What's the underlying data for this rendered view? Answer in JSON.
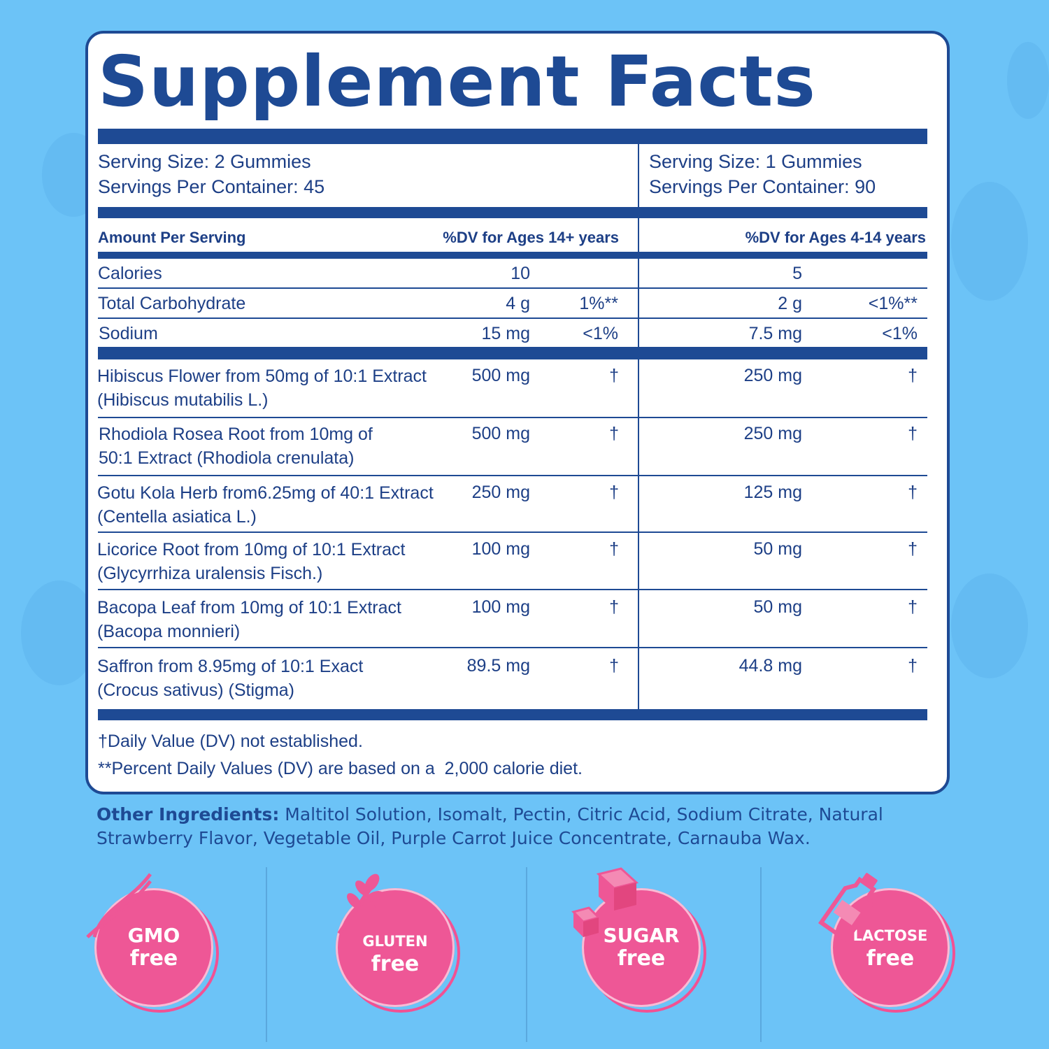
{
  "title": "Supplement Facts",
  "serving_left": {
    "size": "Serving Size: 2 Gummies",
    "per_container": "Servings Per Container: 45"
  },
  "serving_right": {
    "size": "Serving Size: 1 Gummies",
    "per_container": "Servings Per Container: 90"
  },
  "header": {
    "amount": "Amount Per Serving",
    "dv_left": "%DV for Ages 14+ years",
    "dv_right": "%DV for Ages 4-14 years"
  },
  "nutrients": [
    {
      "name": "Calories",
      "amt_left": "10",
      "dv_left": "",
      "amt_right": "5",
      "dv_right": ""
    },
    {
      "name": "Total Carbohydrate",
      "amt_left": "4 g",
      "dv_left": "1%**",
      "amt_right": "2 g",
      "dv_right": "<1%**"
    },
    {
      "name": "Sodium",
      "amt_left": "15 mg",
      "dv_left": "<1%",
      "amt_right": "7.5 mg",
      "dv_right": "<1%"
    }
  ],
  "ingredients": [
    {
      "line1": "Hibiscus Flower from 50mg of 10:1 Extract",
      "line2": "(Hibiscus mutabilis L.)",
      "amt_left": "500 mg",
      "dv_left": "†",
      "amt_right": "250 mg",
      "dv_right": "†"
    },
    {
      "line1": "Rhodiola Rosea Root from 10mg of",
      "line2": "50:1 Extract (Rhodiola crenulata)",
      "amt_left": "500 mg",
      "dv_left": "†",
      "amt_right": "250 mg",
      "dv_right": "†"
    },
    {
      "line1": "Gotu Kola Herb from6.25mg of 40:1 Extract",
      "line2": "(Centella asiatica L.)",
      "amt_left": "250 mg",
      "dv_left": "†",
      "amt_right": "125 mg",
      "dv_right": "†"
    },
    {
      "line1": "Licorice Root from 10mg of 10:1 Extract",
      "line2": "(Glycyrrhiza uralensis Fisch.)",
      "amt_left": "100 mg",
      "dv_left": "†",
      "amt_right": "50 mg",
      "dv_right": "†"
    },
    {
      "line1": "Bacopa Leaf from 10mg of 10:1 Extract",
      "line2": "(Bacopa monnieri)",
      "amt_left": "100 mg",
      "dv_left": "†",
      "amt_right": "50 mg",
      "dv_right": "†"
    },
    {
      "line1": "Saffron from 8.95mg of 10:1 Exact",
      "line2": "(Crocus sativus) (Stigma)",
      "amt_left": "89.5 mg",
      "dv_left": "†",
      "amt_right": "44.8 mg",
      "dv_right": "†"
    }
  ],
  "footnotes": {
    "dagger": "†Daily Value (DV) not established.",
    "dv_basis": "**Percent Daily Values (DV) are based on a  2,000 calorie diet."
  },
  "other_ingredients": {
    "label": "Other Ingredients:",
    "text": "Maltitol Solution, Isomalt, Pectin, Citric Acid, Sodium Citrate, Natural Strawberry Flavor, Vegetable Oil, Purple Carrot Juice Concentrate, Carnauba Wax."
  },
  "badges": [
    {
      "word": "GMO",
      "free": "free",
      "icon": "dna-icon"
    },
    {
      "word": "GLUTEN",
      "free": "free",
      "icon": "wheat-icon"
    },
    {
      "word": "SUGAR",
      "free": "free",
      "icon": "sugar-cube-icon"
    },
    {
      "word": "LACTOSE",
      "free": "free",
      "icon": "milk-bottle-icon"
    }
  ],
  "colors": {
    "background": "#6cc3f7",
    "navy": "#1e4a94",
    "badge_pink": "#ee5796"
  }
}
